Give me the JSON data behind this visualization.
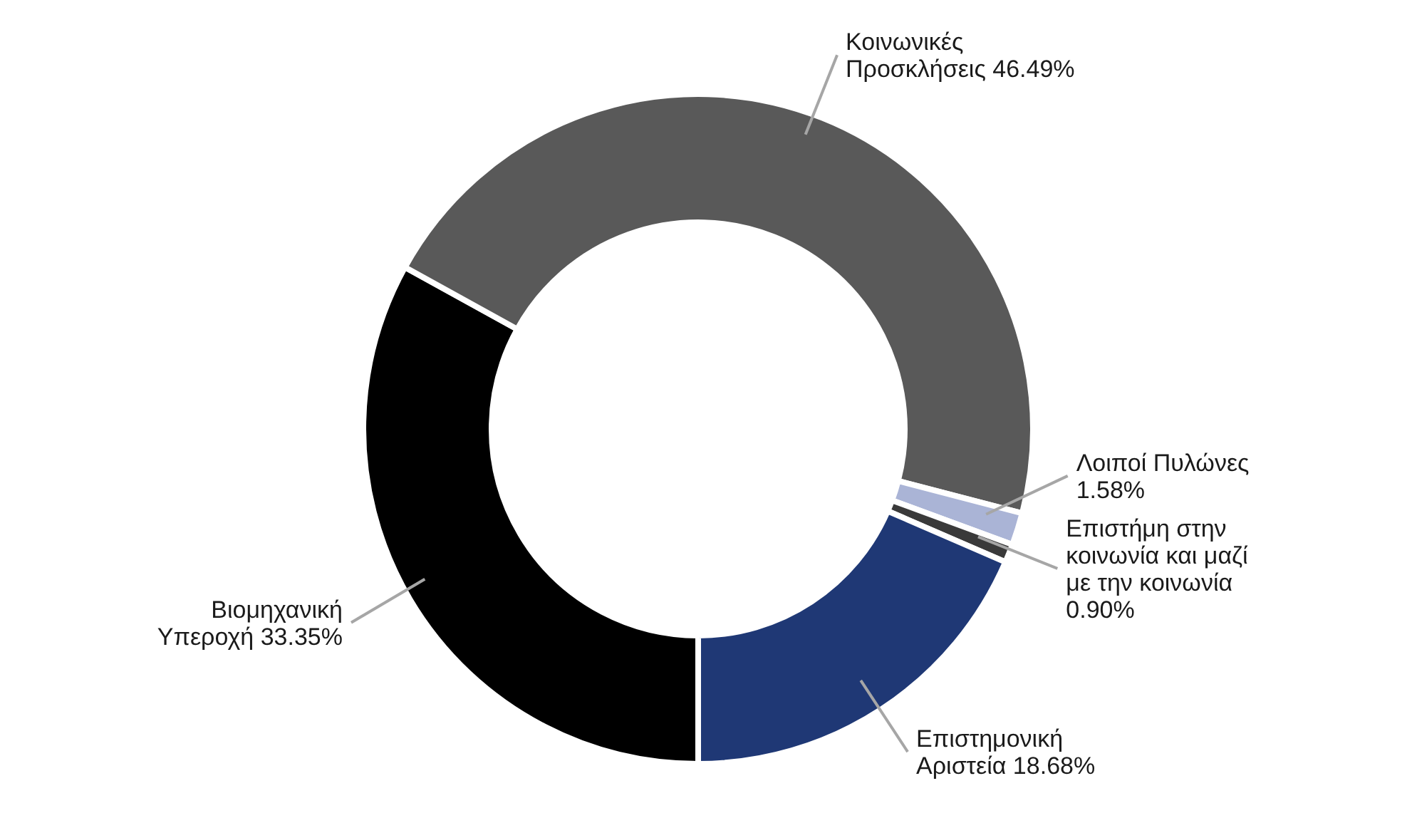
{
  "chart_data": {
    "type": "donut",
    "categories": [
      "Βιομηχανική Υπεροχή",
      "Κοινωνικές Προσκλήσεις",
      "Λοιποί Πυλώνες",
      "Επιστήμη στην κοινωνία και μαζί με την κοινωνία",
      "Επιστημονική Αριστεία"
    ],
    "values": [
      33.35,
      46.49,
      1.58,
      0.9,
      18.68
    ],
    "value_labels": [
      "33.35%",
      "46.49%",
      "1.58%",
      "0.90%",
      "18.68%"
    ],
    "colors": [
      "#000000",
      "#595959",
      "#aab4d6",
      "#3a3a3a",
      "#1f3875"
    ],
    "legend": false
  }
}
